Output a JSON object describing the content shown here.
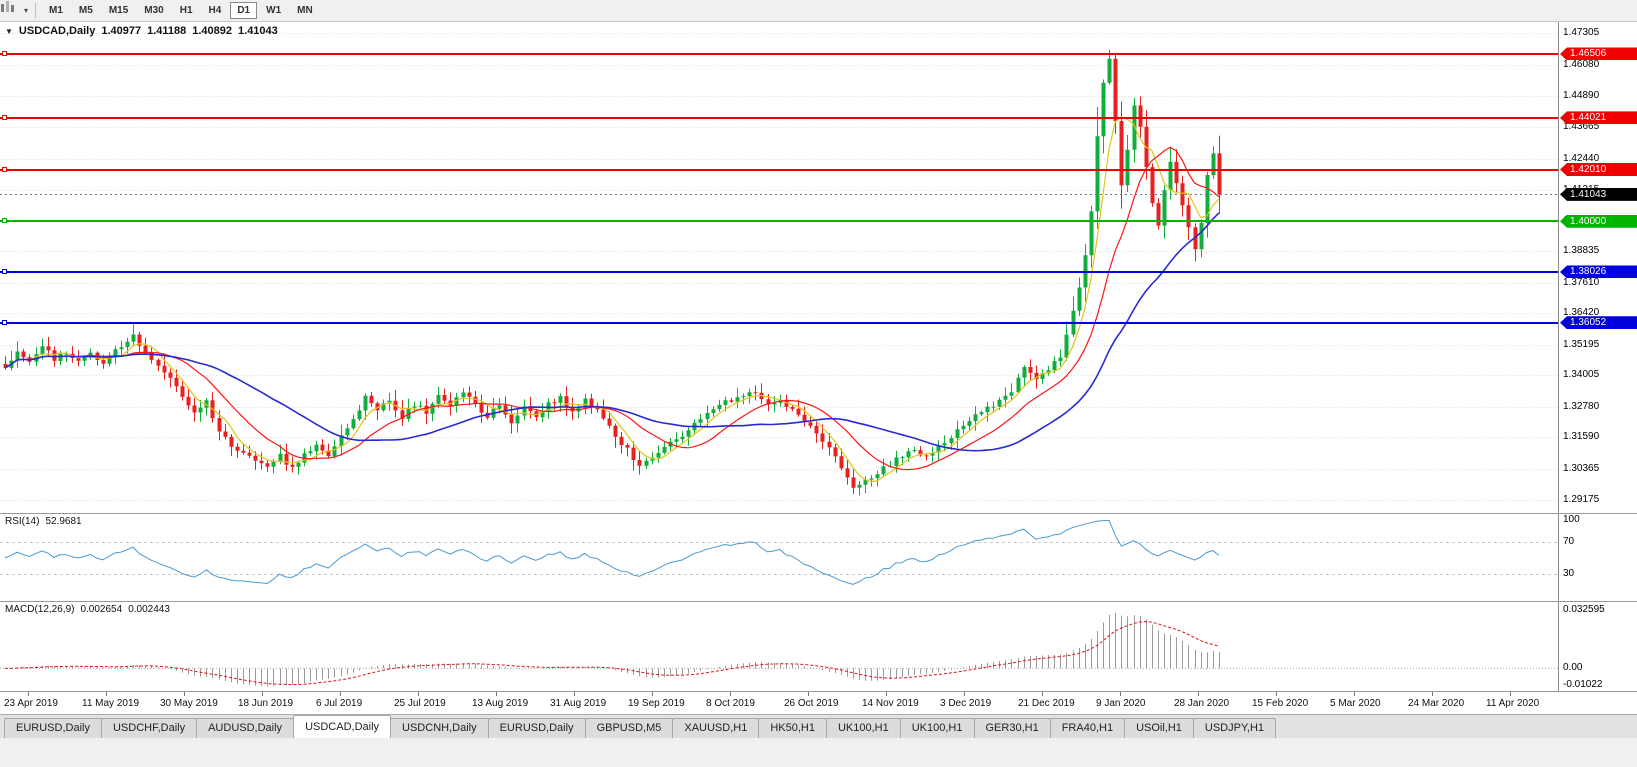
{
  "toolbar": {
    "timeframes": [
      {
        "label": "M1",
        "active": false
      },
      {
        "label": "M5",
        "active": false
      },
      {
        "label": "M15",
        "active": false
      },
      {
        "label": "M30",
        "active": false
      },
      {
        "label": "H1",
        "active": false
      },
      {
        "label": "H4",
        "active": false
      },
      {
        "label": "D1",
        "active": true
      },
      {
        "label": "W1",
        "active": false
      },
      {
        "label": "MN",
        "active": false
      }
    ]
  },
  "chart": {
    "title": {
      "symbol": "USDCAD,Daily",
      "open": "1.40977",
      "high": "1.41188",
      "low": "1.40892",
      "close": "1.41043"
    },
    "price_axis_ticks": [
      "1.47305",
      "1.46080",
      "1.44890",
      "1.43665",
      "1.42440",
      "1.41215",
      "1.40025",
      "1.38835",
      "1.37610",
      "1.36420",
      "1.35195",
      "1.34005",
      "1.32780",
      "1.31590",
      "1.30365",
      "1.29175"
    ],
    "hlines": [
      {
        "price": 1.46506,
        "label": "1.46506",
        "color": "#f00000",
        "kind": "resistance"
      },
      {
        "price": 1.44021,
        "label": "1.44021",
        "color": "#f00000",
        "kind": "resistance"
      },
      {
        "price": 1.4201,
        "label": "1.42010",
        "color": "#f00000",
        "kind": "resistance"
      },
      {
        "price": 1.4,
        "label": "1.40000",
        "color": "#00b400",
        "kind": "support"
      },
      {
        "price": 1.38026,
        "label": "1.38026",
        "color": "#0000dc",
        "kind": "support"
      },
      {
        "price": 1.36052,
        "label": "1.36052",
        "color": "#0000dc",
        "kind": "support"
      }
    ],
    "current_price": {
      "value": 1.41043,
      "label": "1.41043",
      "badge_color": "#000000"
    },
    "date_labels": [
      "23 Apr 2019",
      "11 May 2019",
      "30 May 2019",
      "18 Jun 2019",
      "6 Jul 2019",
      "25 Jul 2019",
      "13 Aug 2019",
      "31 Aug 2019",
      "19 Sep 2019",
      "8 Oct 2019",
      "26 Oct 2019",
      "14 Nov 2019",
      "3 Dec 2019",
      "21 Dec 2019",
      "9 Jan 2020",
      "28 Jan 2020",
      "15 Feb 2020",
      "5 Mar 2020",
      "24 Mar 2020",
      "11 Apr 2020"
    ]
  },
  "rsi": {
    "name": "RSI(14)",
    "value": "52.9681",
    "line_color": "#4a9ad2",
    "levels": [
      {
        "label": "100",
        "value": 100
      },
      {
        "label": "70",
        "value": 70
      },
      {
        "label": "30",
        "value": 30
      }
    ]
  },
  "macd": {
    "name": "MACD(12,26,9)",
    "value_main": "0.002654",
    "value_signal": "0.002443",
    "bar_color": "#9a9a9a",
    "signal_color": "#e01414",
    "axis_labels": [
      {
        "label": "0.032595",
        "value": 0.032595
      },
      {
        "label": "0.00",
        "value": 0
      },
      {
        "label": "-0.01022",
        "value": -0.01022
      }
    ]
  },
  "tabs": [
    {
      "label": "EURUSD,Daily",
      "active": false
    },
    {
      "label": "USDCHF,Daily",
      "active": false
    },
    {
      "label": "AUDUSD,Daily",
      "active": false
    },
    {
      "label": "USDCAD,Daily",
      "active": true
    },
    {
      "label": "USDCNH,Daily",
      "active": false
    },
    {
      "label": "EURUSD,Daily",
      "active": false
    },
    {
      "label": "GBPUSD,M5",
      "active": false
    },
    {
      "label": "XAUUSD,H1",
      "active": false
    },
    {
      "label": "HK50,H1",
      "active": false
    },
    {
      "label": "UK100,H1",
      "active": false
    },
    {
      "label": "UK100,H1",
      "active": false
    },
    {
      "label": "GER30,H1",
      "active": false
    },
    {
      "label": "FRA40,H1",
      "active": false
    },
    {
      "label": "USOil,H1",
      "active": false
    },
    {
      "label": "USDJPY,H1",
      "active": false
    }
  ],
  "chart_data": {
    "type": "candlestick",
    "symbol": "USDCAD",
    "timeframe": "Daily",
    "ohlc_current": {
      "open": 1.40977,
      "high": 1.41188,
      "low": 1.40892,
      "close": 1.41043
    },
    "visible_range_high": 1.4668,
    "visible_range_low": 1.2912,
    "price_scale": {
      "max": 1.4775,
      "min": 1.2865
    },
    "candle_count": 200,
    "up_color": "#0fae3d",
    "down_color": "#ea2020",
    "close_anchors": [
      [
        0,
        1.344
      ],
      [
        2,
        1.349
      ],
      [
        4,
        1.345
      ],
      [
        6,
        1.351
      ],
      [
        8,
        1.3465
      ],
      [
        10,
        1.3495
      ],
      [
        12,
        1.345
      ],
      [
        14,
        1.3485
      ],
      [
        16,
        1.3445
      ],
      [
        18,
        1.35
      ],
      [
        21,
        1.3555
      ],
      [
        23,
        1.3495
      ],
      [
        25,
        1.344
      ],
      [
        27,
        1.34
      ],
      [
        29,
        1.331
      ],
      [
        31,
        1.326
      ],
      [
        33,
        1.3295
      ],
      [
        35,
        1.318
      ],
      [
        37,
        1.313
      ],
      [
        39,
        1.3105
      ],
      [
        41,
        1.307
      ],
      [
        43,
        1.304
      ],
      [
        45,
        1.3085
      ],
      [
        47,
        1.3035
      ],
      [
        49,
        1.309
      ],
      [
        51,
        1.313
      ],
      [
        53,
        1.3085
      ],
      [
        55,
        1.317
      ],
      [
        57,
        1.323
      ],
      [
        59,
        1.331
      ],
      [
        61,
        1.3265
      ],
      [
        63,
        1.3305
      ],
      [
        65,
        1.324
      ],
      [
        67,
        1.329
      ],
      [
        69,
        1.3255
      ],
      [
        71,
        1.332
      ],
      [
        73,
        1.3285
      ],
      [
        75,
        1.3335
      ],
      [
        77,
        1.33
      ],
      [
        79,
        1.323
      ],
      [
        81,
        1.329
      ],
      [
        83,
        1.3215
      ],
      [
        85,
        1.3275
      ],
      [
        87,
        1.324
      ],
      [
        89,
        1.3295
      ],
      [
        91,
        1.331
      ],
      [
        93,
        1.325
      ],
      [
        95,
        1.33
      ],
      [
        97,
        1.3265
      ],
      [
        99,
        1.32
      ],
      [
        101,
        1.314
      ],
      [
        103,
        1.308
      ],
      [
        104,
        1.305
      ],
      [
        106,
        1.3085
      ],
      [
        108,
        1.312
      ],
      [
        110,
        1.3155
      ],
      [
        112,
        1.319
      ],
      [
        114,
        1.323
      ],
      [
        116,
        1.3265
      ],
      [
        118,
        1.33
      ],
      [
        121,
        1.332
      ],
      [
        123,
        1.333
      ],
      [
        125,
        1.3285
      ],
      [
        127,
        1.3305
      ],
      [
        129,
        1.326
      ],
      [
        131,
        1.322
      ],
      [
        133,
        1.317
      ],
      [
        135,
        1.311
      ],
      [
        137,
        1.304
      ],
      [
        139,
        1.296
      ],
      [
        141,
        1.299
      ],
      [
        143,
        1.302
      ],
      [
        145,
        1.3055
      ],
      [
        147,
        1.309
      ],
      [
        149,
        1.311
      ],
      [
        151,
        1.3085
      ],
      [
        153,
        1.313
      ],
      [
        155,
        1.3165
      ],
      [
        157,
        1.32
      ],
      [
        159,
        1.324
      ],
      [
        161,
        1.327
      ],
      [
        163,
        1.33
      ],
      [
        165,
        1.334
      ],
      [
        167,
        1.343
      ],
      [
        169,
        1.338
      ],
      [
        171,
        1.342
      ],
      [
        173,
        1.347
      ],
      [
        174,
        1.356
      ],
      [
        175,
        1.365
      ],
      [
        176,
        1.374
      ],
      [
        177,
        1.387
      ],
      [
        178,
        1.404
      ],
      [
        179,
        1.433
      ],
      [
        180,
        1.454
      ],
      [
        181,
        1.463
      ],
      [
        182,
        1.439
      ],
      [
        183,
        1.414
      ],
      [
        184,
        1.428
      ],
      [
        185,
        1.445
      ],
      [
        186,
        1.437
      ],
      [
        187,
        1.421
      ],
      [
        188,
        1.407
      ],
      [
        189,
        1.3985
      ],
      [
        190,
        1.412
      ],
      [
        191,
        1.423
      ],
      [
        192,
        1.415
      ],
      [
        193,
        1.406
      ],
      [
        194,
        1.3975
      ],
      [
        195,
        1.389
      ],
      [
        196,
        1.3995
      ],
      [
        197,
        1.418
      ],
      [
        198,
        1.4265
      ],
      [
        199,
        1.4104
      ]
    ],
    "moving_averages": [
      {
        "period": 5,
        "color": "#e3c414"
      },
      {
        "period": 13,
        "color": "#ff1414"
      },
      {
        "period": 30,
        "color": "#2a2ad2"
      }
    ],
    "indicators": {
      "rsi_period": 14,
      "rsi_last": 52.9681,
      "macd_params": [
        12,
        26,
        9
      ],
      "macd_last": 0.002654,
      "macd_signal_last": 0.002443
    }
  }
}
